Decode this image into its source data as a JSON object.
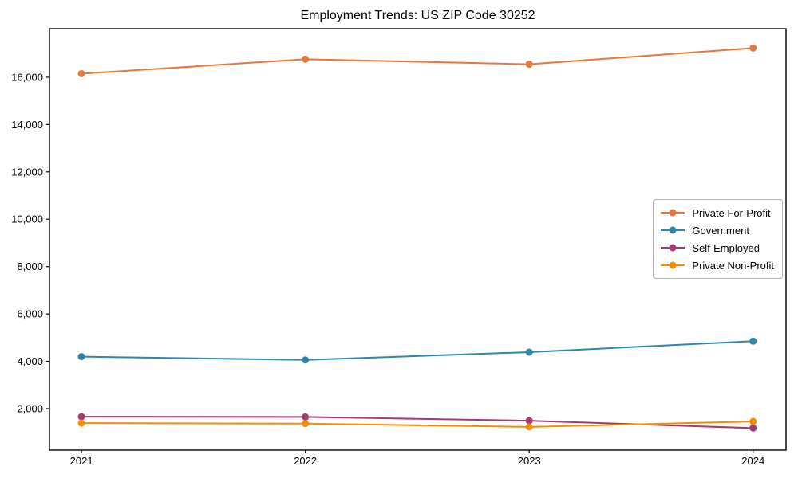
{
  "chart_data": {
    "type": "line",
    "title": "Employment Trends: US ZIP Code 30252",
    "xlabel": "",
    "ylabel": "",
    "x": [
      2021,
      2022,
      2023,
      2024
    ],
    "xtick_labels": [
      "2021",
      "2022",
      "2023",
      "2024"
    ],
    "yticks": [
      2000,
      4000,
      6000,
      8000,
      10000,
      12000,
      14000,
      16000
    ],
    "ytick_labels": [
      "2,000",
      "4,000",
      "6,000",
      "8,000",
      "10,000",
      "12,000",
      "14,000",
      "16,000"
    ],
    "xlim": [
      2020.857,
      2024.147
    ],
    "ylim": [
      250,
      18050
    ],
    "grid": false,
    "legend_position": "center right",
    "marker": "circle",
    "series": [
      {
        "name": "Private For-Profit",
        "color": "#E2793E",
        "values": [
          16150,
          16760,
          16550,
          17230
        ]
      },
      {
        "name": "Government",
        "color": "#2E86AB",
        "values": [
          4200,
          4060,
          4390,
          4850
        ]
      },
      {
        "name": "Self-Employed",
        "color": "#A23B72",
        "values": [
          1660,
          1650,
          1490,
          1180
        ]
      },
      {
        "name": "Private Non-Profit",
        "color": "#F18F01",
        "values": [
          1390,
          1370,
          1230,
          1460
        ]
      }
    ]
  },
  "style": {
    "frame_color": "#000000",
    "tick_label_color": "#000000",
    "background": "#ffffff",
    "legend_border_color": "#b3b3b3"
  }
}
